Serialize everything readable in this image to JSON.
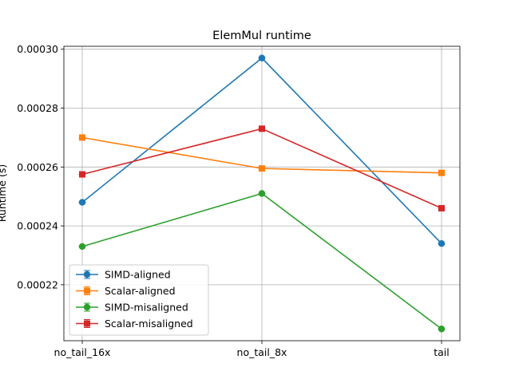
{
  "chart_data": {
    "type": "line",
    "title": "ElemMul runtime",
    "xlabel": "",
    "ylabel": "Runtime (s)",
    "categories": [
      "no_tail_16x",
      "no_tail_8x",
      "tail"
    ],
    "ylim": [
      0.000201,
      0.000301
    ],
    "yticks": [
      0.00022,
      0.00024,
      0.00026,
      0.00028,
      0.0003
    ],
    "ytick_labels": [
      "0.00022",
      "0.00024",
      "0.00026",
      "0.00028",
      "0.00030"
    ],
    "grid": true,
    "legend_position": "lower-left",
    "series": [
      {
        "name": "SIMD-aligned",
        "color": "#1f77b4",
        "marker": "circle",
        "values": [
          0.000248,
          0.000297,
          0.000234
        ]
      },
      {
        "name": "Scalar-aligned",
        "color": "#ff7f0e",
        "marker": "square",
        "values": [
          0.00027,
          0.0002595,
          0.000258
        ]
      },
      {
        "name": "SIMD-misaligned",
        "color": "#2ca02c",
        "marker": "circle",
        "values": [
          0.000233,
          0.000251,
          0.000205
        ]
      },
      {
        "name": "Scalar-misaligned",
        "color": "#d62728",
        "marker": "square",
        "values": [
          0.0002575,
          0.000273,
          0.000246
        ]
      }
    ]
  }
}
